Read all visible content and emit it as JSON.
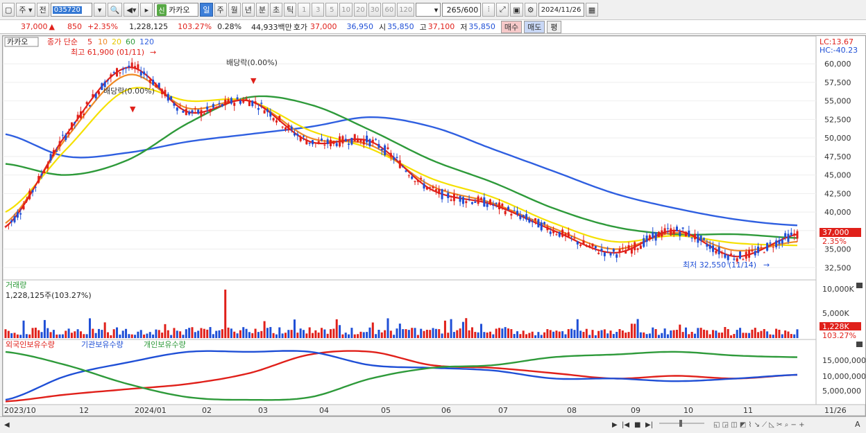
{
  "toolbar": {
    "market_label": "주",
    "type_label": "전",
    "stock_code": "035720",
    "stock_name": "카카오",
    "new_badge": "신",
    "period_tabs": [
      "일",
      "주",
      "월",
      "년",
      "분",
      "초",
      "틱"
    ],
    "interval_buttons": [
      "1",
      "3",
      "5",
      "10",
      "20",
      "30",
      "60",
      "120"
    ],
    "count_display": "265",
    "count_total": "/600",
    "date_value": "2024/11/26"
  },
  "quote": {
    "price": "37,000",
    "change": "850",
    "change_pct": "+2.35%",
    "volume": "1,228,125",
    "volume_ratio": "103.27%",
    "turnover_pct": "0.28%",
    "amount": "44,933백만",
    "hoga_label": "호가",
    "ask": "37,000",
    "bid": "36,950",
    "open_label": "시",
    "open": "35,850",
    "high_label": "고",
    "high": "37,100",
    "low_label": "저",
    "low": "35,850",
    "buy_label": "매수",
    "sell_label": "매도",
    "eval_label": "평"
  },
  "price_panel": {
    "title": "카카오",
    "ma_label": "종가 단순",
    "ma_periods": [
      "5",
      "10",
      "20",
      "60",
      "120"
    ],
    "lc": "LC:13.67",
    "hc": "HC:-40.23",
    "high_note": "최고 61,900 (01/11)",
    "low_note": "최저 32,550 (11/14)",
    "dividend_note_1": "배당락(0.00%)",
    "dividend_note_2": "배당락(0.00%)",
    "current_tag": "37,000",
    "pct_tag": "2.35%",
    "y_ticks": [
      "60,000",
      "57,500",
      "55,000",
      "52,500",
      "50,000",
      "47,500",
      "45,000",
      "42,500",
      "40,000",
      "37,500",
      "35,000",
      "32,500"
    ]
  },
  "volume_panel": {
    "title": "거래량",
    "value_text": "1,228,125주(103.27%)",
    "y_ticks": [
      "10,000K",
      "5,000K"
    ],
    "current_tag": "1,228K",
    "pct_tag": "103.27%"
  },
  "holding_panel": {
    "legend": [
      "외국인보유수량",
      "기관보유수량",
      "개인보유수량"
    ],
    "y_ticks": [
      "15,000,000",
      "10,000,000",
      "5,000,000"
    ]
  },
  "x_axis": {
    "labels": [
      "2023/10",
      "12",
      "2024/01",
      "02",
      "03",
      "04",
      "05",
      "06",
      "07",
      "08",
      "09",
      "10",
      "11",
      "11/26"
    ]
  },
  "colors": {
    "up": "#e0201a",
    "down": "#1f4fd6",
    "ma5": "#e0201a",
    "ma10": "#f08a24",
    "ma20": "#f5e000",
    "ma60": "#2e9a3a",
    "ma120": "#2f5fe0"
  },
  "chart_data": {
    "type": "line",
    "x": [
      "2023/10",
      "12",
      "2024/01",
      "02",
      "03",
      "04",
      "05",
      "06",
      "07",
      "08",
      "09",
      "10",
      "11",
      "11/26"
    ],
    "series": [
      {
        "name": "5",
        "values": [
          38000,
          50500,
          59500,
          53500,
          55000,
          49500,
          49500,
          43000,
          41000,
          37500,
          34500,
          37500,
          34000,
          37000
        ]
      },
      {
        "name": "10",
        "values": [
          38500,
          50000,
          58500,
          54000,
          55000,
          50000,
          49000,
          43500,
          41200,
          37800,
          35000,
          37200,
          34800,
          36000
        ]
      },
      {
        "name": "20",
        "values": [
          40000,
          48500,
          56500,
          55000,
          55000,
          51000,
          48500,
          44500,
          42000,
          38500,
          36000,
          36800,
          35800,
          35500
        ]
      },
      {
        "name": "60",
        "values": [
          46500,
          45000,
          47000,
          52000,
          55500,
          54500,
          51000,
          47000,
          44000,
          40500,
          38000,
          37000,
          37000,
          36500
        ]
      },
      {
        "name": "120",
        "values": [
          50500,
          47500,
          48000,
          49500,
          50500,
          51500,
          52800,
          51500,
          48500,
          45500,
          42500,
          40500,
          39000,
          38200
        ]
      }
    ],
    "ylim": [
      31500,
      63000
    ]
  }
}
